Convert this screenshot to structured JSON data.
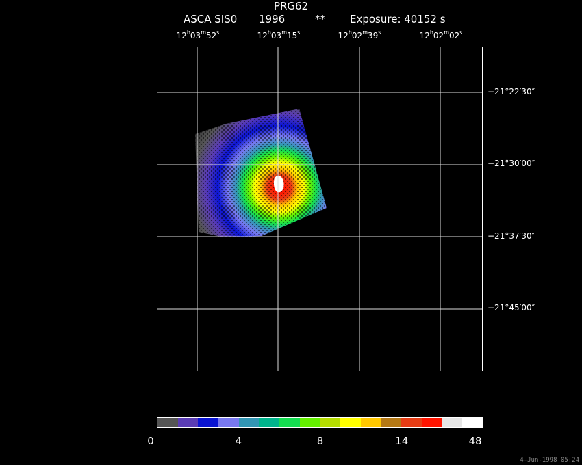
{
  "header": {
    "title": "PRG62",
    "instrument": "ASCA SIS0",
    "year": "1996",
    "marker": "**",
    "exposure": "Exposure: 40152 s"
  },
  "ra_axis": {
    "labels": [
      {
        "h": "12",
        "m": "03",
        "s": "52"
      },
      {
        "h": "12",
        "m": "03",
        "s": "15"
      },
      {
        "h": "12",
        "m": "02",
        "s": "39"
      },
      {
        "h": "12",
        "m": "02",
        "s": "02"
      }
    ]
  },
  "dec_axis": {
    "labels": [
      "−21°22′30″",
      "−21°30′00″",
      "−21°37′30″",
      "−21°45′00″"
    ]
  },
  "colorbar": {
    "colors": [
      "#555555",
      "#5a3cb4",
      "#0a14d2",
      "#7878f0",
      "#3296b4",
      "#00b48c",
      "#14dc50",
      "#64f000",
      "#b4dc00",
      "#ffff00",
      "#ffc800",
      "#b47814",
      "#e63c14",
      "#ff1400",
      "#e6e6e6",
      "#ffffff"
    ],
    "ticks": [
      {
        "label": "0",
        "frac": 0.0
      },
      {
        "label": "4",
        "frac": 0.25
      },
      {
        "label": "8",
        "frac": 0.5
      },
      {
        "label": "14",
        "frac": 0.75
      },
      {
        "label": "48",
        "frac": 1.0
      }
    ]
  },
  "footer": {
    "stamp": "4-Jun-1998 05:24"
  }
}
